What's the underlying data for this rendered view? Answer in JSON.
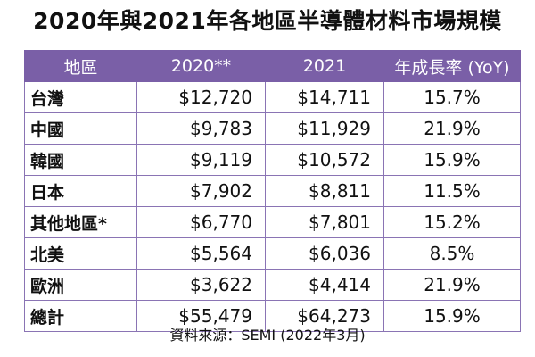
{
  "title": "2020年與2021年各地區半導體材料市場規模",
  "source": "資料來源：SEMI (2022年3月)",
  "chart_data": {
    "type": "table",
    "columns": [
      "地區",
      "2020**",
      "2021",
      "年成長率 (YoY)"
    ],
    "rows": [
      [
        "台灣",
        "$12,720",
        "$14,711",
        "15.7%"
      ],
      [
        "中國",
        "$9,783",
        "$11,929",
        "21.9%"
      ],
      [
        "韓國",
        "$9,119",
        "$10,572",
        "15.9%"
      ],
      [
        "日本",
        "$7,902",
        "$8,811",
        "11.5%"
      ],
      [
        "其他地區*",
        "$6,770",
        "$7,801",
        "15.2%"
      ],
      [
        "北美",
        "$5,564",
        "$6,036",
        "8.5%"
      ],
      [
        "歐洲",
        "$3,622",
        "$4,414",
        "21.9%"
      ],
      [
        "總計",
        "$55,479",
        "$64,273",
        "15.9%"
      ]
    ]
  },
  "colors": {
    "header_bg": "#7a5fa7",
    "header_text": "#ffffff",
    "border": "#8a74b4"
  }
}
